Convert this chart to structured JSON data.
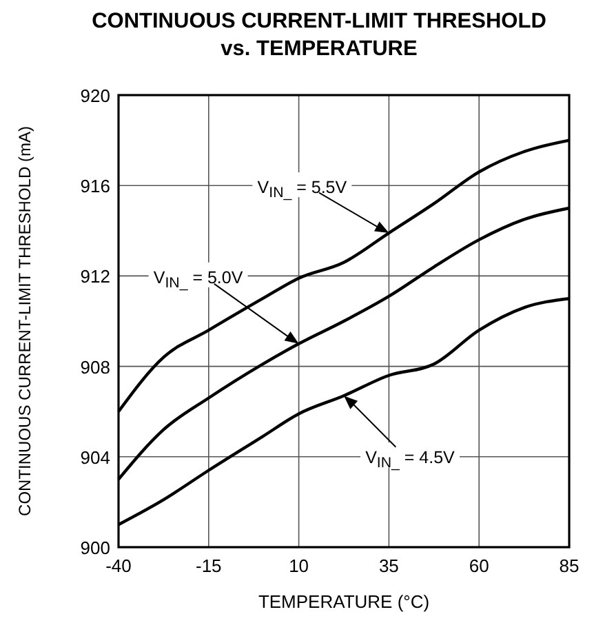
{
  "chart_data": {
    "type": "line",
    "title": "CONTINUOUS CURRENT-LIMIT THRESHOLD\nvs. TEMPERATURE",
    "xlabel": "TEMPERATURE (°C)",
    "ylabel": "CONTINUOUS CURRENT-LIMIT THRESHOLD (mA)",
    "x": [
      -40,
      -27.5,
      -15,
      0,
      10,
      22.5,
      35,
      47.5,
      60,
      72.5,
      85
    ],
    "series": [
      {
        "color": "#000000",
        "values": [
          906,
          908.4,
          909.6,
          911,
          911.9,
          912.6,
          913.9,
          915.2,
          916.6,
          917.5,
          918
        ]
      },
      {
        "color": "#000000",
        "values": [
          903,
          905.2,
          906.6,
          908.1,
          909,
          910,
          911.1,
          912.4,
          913.6,
          914.5,
          915
        ]
      },
      {
        "color": "#000000",
        "values": [
          901,
          902.1,
          903.4,
          904.9,
          905.9,
          906.7,
          907.6,
          908.1,
          909.6,
          910.6,
          911
        ]
      }
    ],
    "annotations": [
      "V$_{IN_}$ = 5.5V",
      "V$_{IN_}$ = 5.0V",
      "V$_{IN_}$ = 4.5V"
    ],
    "xlim": [
      -40,
      85
    ],
    "xticks": [
      -40,
      -15,
      10,
      35,
      60,
      85
    ],
    "ylim": [
      900,
      920
    ],
    "yticks": [
      900,
      904,
      908,
      912,
      916,
      920
    ],
    "grid": true,
    "marker": "none",
    "line_style": "solid"
  }
}
